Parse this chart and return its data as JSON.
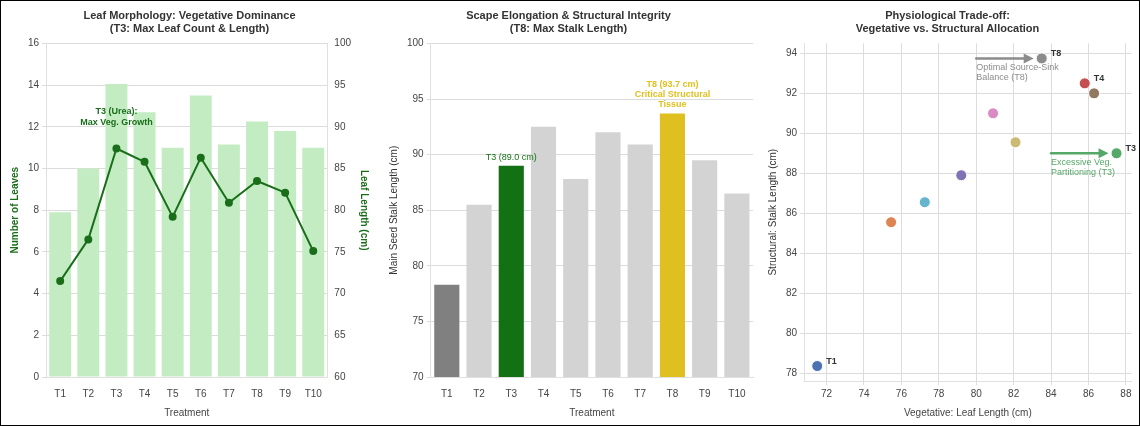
{
  "chart_data": [
    {
      "type": "bar",
      "title": "Leaf Morphology: Vegetative Dominance\n(T3: Max Leaf Count & Length)",
      "xlabel": "Treatment",
      "ylabel": "Number of Leaves",
      "y2label": "Leaf Length (cm)",
      "categories": [
        "T1",
        "T2",
        "T3",
        "T4",
        "T5",
        "T6",
        "T7",
        "T8",
        "T9",
        "T10"
      ],
      "series": [
        {
          "color": "#c3ecc3",
          "values": [
            7.9,
            10.0,
            14.05,
            12.7,
            11.0,
            13.5,
            11.15,
            12.25,
            11.8,
            11.0
          ]
        },
        {
          "type": "line",
          "axis": "y2",
          "color": "#1a6e1a",
          "values": [
            71.5,
            76.5,
            87.4,
            85.8,
            79.2,
            86.3,
            80.9,
            83.5,
            82.1,
            75.1
          ]
        }
      ],
      "ylim": [
        0,
        16
      ],
      "yticks": [
        0,
        2,
        4,
        6,
        8,
        10,
        12,
        14,
        16
      ],
      "y2lim": [
        60,
        100
      ],
      "y2ticks": [
        60,
        65,
        70,
        75,
        80,
        85,
        90,
        95,
        100
      ],
      "grid": "y",
      "marker": "circle",
      "annotations": [
        "T3 (Urea):\nMax Veg. Growth"
      ]
    },
    {
      "type": "bar",
      "title": "Scape Elongation & Structural Integrity\n(T8: Max Stalk Length)",
      "xlabel": "Treatment",
      "ylabel": "Main Seed Stalk Length (cm)",
      "categories": [
        "T1",
        "T2",
        "T3",
        "T4",
        "T5",
        "T6",
        "T7",
        "T8",
        "T9",
        "T10"
      ],
      "values": [
        78.3,
        85.5,
        89.0,
        92.5,
        87.8,
        92.0,
        90.9,
        93.7,
        89.5,
        86.5
      ],
      "colors": [
        "#808080",
        "#d3d3d3",
        "#137113",
        "#d3d3d3",
        "#d3d3d3",
        "#d3d3d3",
        "#d3d3d3",
        "#e0c020",
        "#d3d3d3",
        "#d3d3d3"
      ],
      "ylim": [
        70,
        100
      ],
      "yticks": [
        70,
        75,
        80,
        85,
        90,
        95,
        100
      ],
      "grid": "y",
      "annotations": [
        {
          "text": "T3 (89.0 cm)",
          "x": "T3",
          "y": 89.0
        },
        {
          "text": "T8 (93.7 cm)\nCritical Structural\nTissue",
          "x": "T8",
          "y": 93.7
        }
      ]
    },
    {
      "type": "scatter",
      "title": "Physiological Trade-off:\nVegetative vs. Structural Allocation",
      "xlabel": "Vegetative: Leaf Length (cm)",
      "ylabel": "Structural: Stalk Length (cm)",
      "x": [
        71.5,
        75.45,
        87.5,
        85.8,
        79.2,
        86.3,
        80.9,
        83.5,
        82.1,
        77.25
      ],
      "values": [
        78.35,
        85.55,
        89.0,
        92.5,
        87.9,
        92.0,
        91.0,
        93.75,
        89.55,
        86.55
      ],
      "colors": [
        "#4c72b0",
        "#dd8452",
        "#55a868",
        "#c44e52",
        "#8172b3",
        "#937860",
        "#da8bc3",
        "#8c8c8c",
        "#ccb974",
        "#64b5cd"
      ],
      "xlim": [
        70.8,
        88.3
      ],
      "xticks": [
        72,
        74,
        76,
        78,
        80,
        82,
        84,
        86,
        88
      ],
      "ylim": [
        77.6,
        94.5
      ],
      "yticks": [
        78,
        80,
        82,
        84,
        86,
        88,
        90,
        92,
        94
      ],
      "grid": true,
      "marker": "circle",
      "annotations": [
        {
          "text": "T1",
          "x": 71.5,
          "y": 78.35
        },
        {
          "text": "T8",
          "x": 83.5,
          "y": 93.75
        },
        {
          "text": "T4",
          "x": 85.8,
          "y": 92.5
        },
        {
          "text": "T3",
          "x": 87.5,
          "y": 89.0
        },
        {
          "text": "Optimal Source-Sink\nBalance (T8)",
          "x": 83.5,
          "y": 93.75
        },
        {
          "text": "Excessive Veg.\nPartitioning (T3)",
          "x": 87.5,
          "y": 89.0
        }
      ]
    }
  ]
}
